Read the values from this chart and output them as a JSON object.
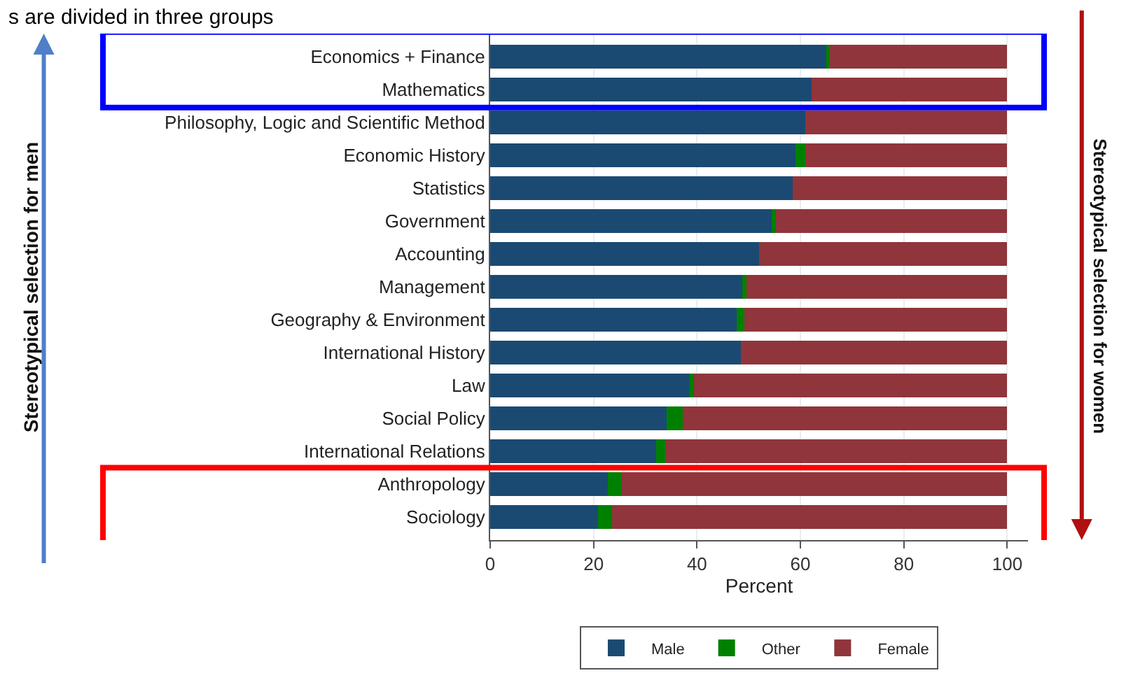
{
  "chart_data": {
    "type": "bar",
    "orientation": "horizontal",
    "stacked": true,
    "categories": [
      "Economics + Finance",
      "Mathematics",
      "Philosophy, Logic and Scientific Method",
      "Economic History",
      "Statistics",
      "Government",
      "Accounting",
      "Management",
      "Geography & Environment",
      "International History",
      "Law",
      "Social Policy",
      "International Relations",
      "Anthropology",
      "Sociology"
    ],
    "series": [
      {
        "name": "Male",
        "color": "#1a4a72",
        "values": [
          65.2,
          62.1,
          61.0,
          59.1,
          58.5,
          54.5,
          52.0,
          48.7,
          47.7,
          48.5,
          38.6,
          34.1,
          32.1,
          22.7,
          20.9
        ]
      },
      {
        "name": "Other",
        "color": "#008000",
        "values": [
          0.4,
          0,
          0,
          1.9,
          0,
          0.8,
          0,
          0.8,
          1.4,
          0,
          0.8,
          3.1,
          1.7,
          2.7,
          2.6
        ]
      },
      {
        "name": "Female",
        "color": "#90353b",
        "values": [
          34.4,
          37.9,
          39.0,
          39.0,
          41.5,
          44.7,
          48.0,
          50.5,
          50.9,
          51.5,
          60.6,
          62.8,
          66.2,
          74.6,
          76.5
        ]
      }
    ],
    "xlabel": "Percent",
    "xlim": [
      0,
      104
    ],
    "xticks": [
      0,
      20,
      40,
      60,
      80,
      100
    ],
    "grid": "x",
    "legend": "bottom",
    "annotations": [
      "s are divided in three groups",
      "Stereotypical selection for men",
      "Stereotypical selection for women"
    ]
  }
}
